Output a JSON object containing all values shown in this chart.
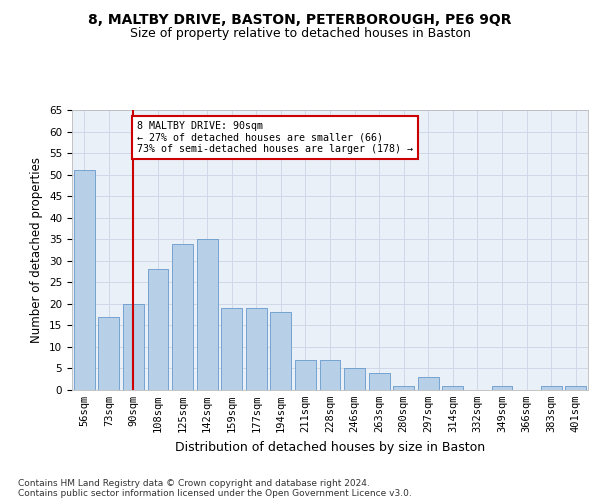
{
  "title_line1": "8, MALTBY DRIVE, BASTON, PETERBOROUGH, PE6 9QR",
  "title_line2": "Size of property relative to detached houses in Baston",
  "xlabel": "Distribution of detached houses by size in Baston",
  "ylabel": "Number of detached properties",
  "categories": [
    "56sqm",
    "73sqm",
    "90sqm",
    "108sqm",
    "125sqm",
    "142sqm",
    "159sqm",
    "177sqm",
    "194sqm",
    "211sqm",
    "228sqm",
    "246sqm",
    "263sqm",
    "280sqm",
    "297sqm",
    "314sqm",
    "332sqm",
    "349sqm",
    "366sqm",
    "383sqm",
    "401sqm"
  ],
  "values": [
    51,
    17,
    20,
    28,
    34,
    35,
    19,
    19,
    18,
    7,
    7,
    5,
    4,
    1,
    3,
    1,
    0,
    1,
    0,
    1,
    1
  ],
  "bar_color": "#b8cfe8",
  "bar_edgecolor": "#6699cc",
  "vline_x_index": 2,
  "vline_color": "#cc0000",
  "annotation_text": "8 MALTBY DRIVE: 90sqm\n← 27% of detached houses are smaller (66)\n73% of semi-detached houses are larger (178) →",
  "annotation_box_color": "#ffffff",
  "annotation_box_edgecolor": "#cc0000",
  "ylim": [
    0,
    65
  ],
  "yticks": [
    0,
    5,
    10,
    15,
    20,
    25,
    30,
    35,
    40,
    45,
    50,
    55,
    60,
    65
  ],
  "grid_color": "#d0d8e8",
  "background_color": "#eaf0f8",
  "footer_line1": "Contains HM Land Registry data © Crown copyright and database right 2024.",
  "footer_line2": "Contains public sector information licensed under the Open Government Licence v3.0.",
  "title_fontsize": 10,
  "subtitle_fontsize": 9,
  "xlabel_fontsize": 9,
  "ylabel_fontsize": 8.5,
  "tick_fontsize": 7.5,
  "footer_fontsize": 6.5
}
